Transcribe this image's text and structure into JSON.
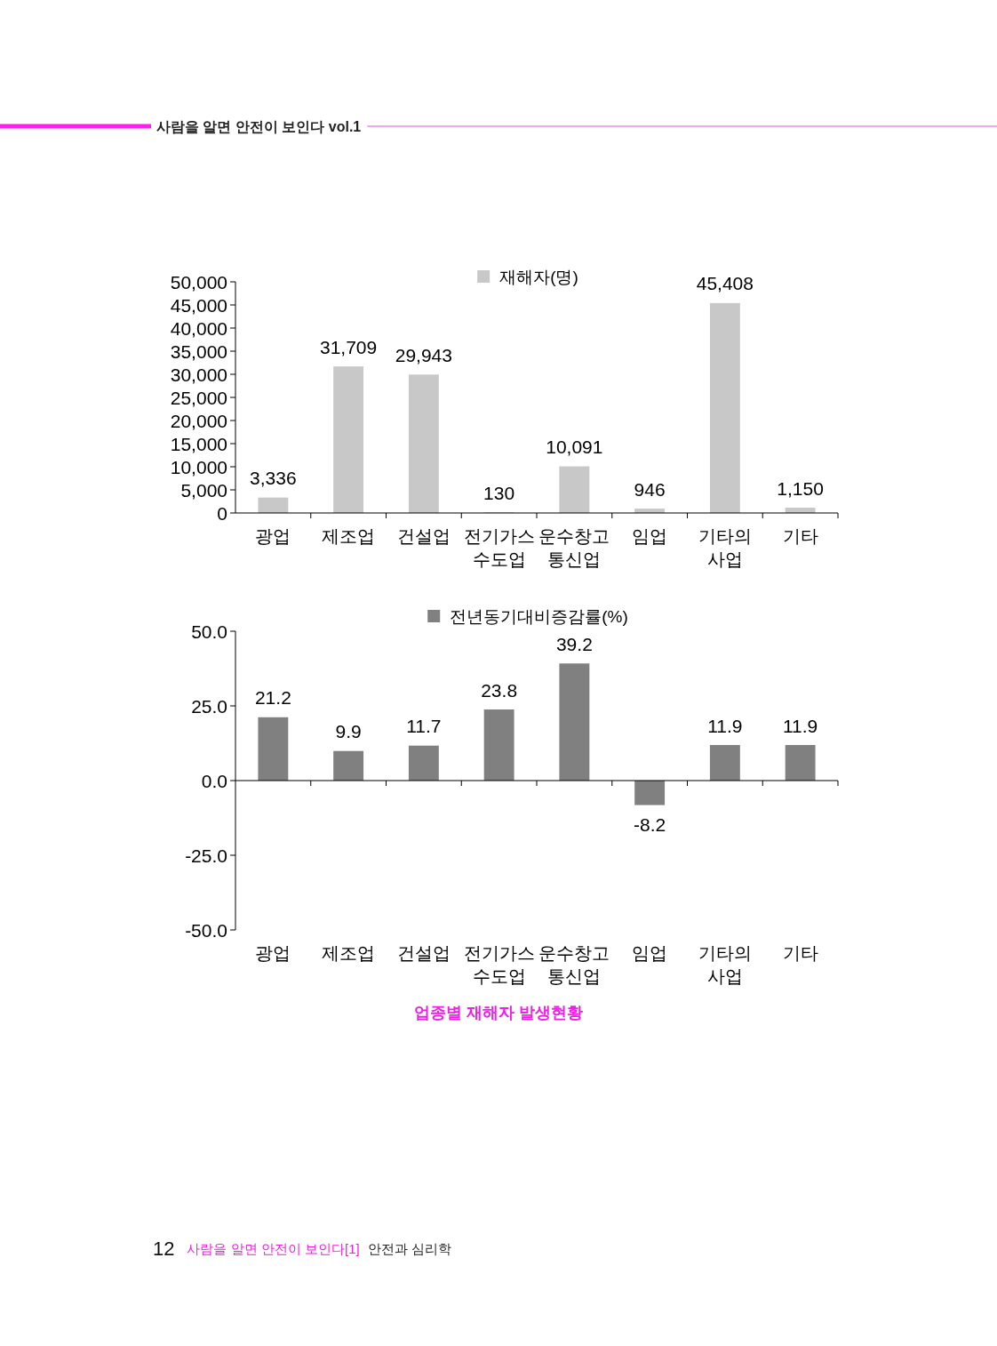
{
  "chart_data": [
    {
      "type": "bar",
      "categories": [
        "광업",
        "제조업",
        "건설업",
        "전기가스\n수도업",
        "운수창고\n통신업",
        "임업",
        "기타의\n사업",
        "기타"
      ],
      "series": [
        {
          "name": "재해자(명)",
          "color": "#c8c8c8",
          "values": [
            3336,
            31709,
            29943,
            130,
            10091,
            946,
            45408,
            1150
          ],
          "value_labels": [
            "3,336",
            "31,709",
            "29,943",
            "130",
            "10,091",
            "946",
            "45,408",
            "1,150"
          ]
        }
      ],
      "ylim": [
        0,
        50000
      ],
      "yticks": [
        0,
        {
          "value": 5000,
          "label": "5,000"
        },
        {
          "value": 10000,
          "label": "10,000"
        },
        {
          "value": 15000,
          "label": "15,000"
        },
        {
          "value": 20000,
          "label": "20,000"
        },
        {
          "value": 25000,
          "label": "25,000"
        },
        {
          "value": 30000,
          "label": "30,000"
        },
        {
          "value": 35000,
          "label": "35,000"
        },
        {
          "value": 40000,
          "label": "40,000"
        },
        {
          "value": 45000,
          "label": "45,000"
        },
        {
          "value": 50000,
          "label": "50,000"
        }
      ],
      "legend": "top",
      "annotations": [
        "사람을 알면 안전이 보인다 vol.1"
      ]
    },
    {
      "type": "bar",
      "categories": [
        "광업",
        "제조업",
        "건설업",
        "전기가스\n수도업",
        "운수창고\n통신업",
        "임업",
        "기타의\n사업",
        "기타"
      ],
      "series": [
        {
          "name": "전년동기대비증감률(%)",
          "color": "#808080",
          "values": [
            21.2,
            9.9,
            11.7,
            23.8,
            39.2,
            -8.2,
            11.9,
            11.9
          ]
        }
      ],
      "data_labels": true,
      "ylim": [
        -50,
        50
      ],
      "yticks": [
        {
          "value": -50,
          "label": "-50.0"
        },
        {
          "value": -25,
          "label": "-25.0"
        },
        {
          "value": 0,
          "label": "0.0"
        },
        {
          "value": 25,
          "label": "25.0"
        },
        {
          "value": 50,
          "label": "50.0"
        }
      ],
      "legend": "top",
      "annotations": [
        "업종별 재해자 발생현황",
        "12",
        "사람을 알면 안전이 보인다[1]",
        "안전과 심리학"
      ]
    }
  ]
}
